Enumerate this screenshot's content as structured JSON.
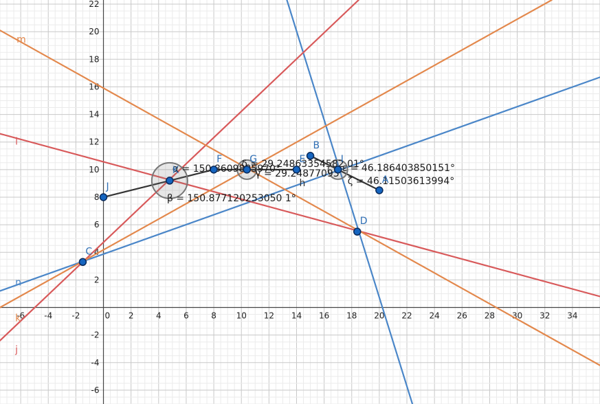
{
  "graph": {
    "x_ticks": [
      "-6",
      "-4",
      "-2",
      "2",
      "4",
      "6",
      "8",
      "10",
      "12",
      "14",
      "16",
      "18",
      "20",
      "22",
      "24",
      "26",
      "28",
      "30",
      "32",
      "34"
    ],
    "y_ticks": [
      "22",
      "20",
      "18",
      "16",
      "14",
      "12",
      "10",
      "8",
      "6",
      "4",
      "2",
      "-2",
      "-4",
      "-6"
    ],
    "origin_label": "0",
    "xlim": [
      -7.5,
      36.0
    ],
    "ylim": [
      -7.0,
      22.3
    ]
  },
  "colors": {
    "blue": "#4a86c8",
    "red": "#d8595a",
    "orange": "#e3884c",
    "dark": "#333333",
    "point_fill": "#1565c0",
    "point_stroke": "#0a2a5a",
    "point_label": "#2f6fb5"
  },
  "lines": [
    {
      "id": "n",
      "label": "n",
      "color": "blue",
      "p1": [
        -7.5,
        1.2
      ],
      "p2": [
        36.0,
        16.7
      ]
    },
    {
      "id": "blue_steep",
      "label": "",
      "color": "blue",
      "p1": [
        13.3,
        22.3
      ],
      "p2": [
        22.4,
        -7.0
      ]
    },
    {
      "id": "j",
      "label": "j",
      "color": "red",
      "p1": [
        -7.5,
        -2.4
      ],
      "p2": [
        18.5,
        22.3
      ]
    },
    {
      "id": "l",
      "label": "l",
      "color": "red",
      "p1": [
        -7.5,
        12.6
      ],
      "p2": [
        36.0,
        0.8
      ]
    },
    {
      "id": "k",
      "label": "k",
      "color": "orange",
      "p1": [
        -7.5,
        0.0
      ],
      "p2": [
        32.5,
        22.3
      ]
    },
    {
      "id": "m",
      "label": "m",
      "color": "orange",
      "p1": [
        -7.5,
        20.1
      ],
      "p2": [
        36.0,
        -4.2
      ]
    }
  ],
  "segments": [
    {
      "from": [
        0.0,
        8.0
      ],
      "to": [
        4.8,
        9.2
      ]
    },
    {
      "from": [
        4.8,
        9.2
      ],
      "to": [
        8.0,
        10.0
      ]
    },
    {
      "from": [
        8.0,
        10.0
      ],
      "to": [
        10.4,
        10.0
      ]
    },
    {
      "from": [
        10.4,
        10.0
      ],
      "to": [
        14.0,
        10.0
      ]
    },
    {
      "from": [
        15.0,
        11.0
      ],
      "to": [
        17.0,
        10.0
      ]
    },
    {
      "from": [
        17.0,
        10.0
      ],
      "to": [
        20.0,
        8.5
      ]
    }
  ],
  "line_labels": [
    {
      "text": "m",
      "color": "orange",
      "at": [
        -6.3,
        19.2
      ]
    },
    {
      "text": "l",
      "color": "red",
      "at": [
        -6.4,
        11.8
      ]
    },
    {
      "text": "n",
      "color": "blue",
      "at": [
        -6.4,
        1.6
      ]
    },
    {
      "text": "k",
      "color": "orange",
      "at": [
        -6.4,
        -1.0
      ]
    },
    {
      "text": "j",
      "color": "red",
      "at": [
        -6.4,
        -3.3
      ]
    },
    {
      "text": "h",
      "color": "dark",
      "at": [
        14.2,
        8.8
      ]
    }
  ],
  "points": [
    {
      "label": "J",
      "x": 0.0,
      "y": 8.0,
      "dx": 4,
      "dy": -11
    },
    {
      "label": "K",
      "x": 4.8,
      "y": 9.2,
      "dx": 4,
      "dy": -11
    },
    {
      "label": "F",
      "x": 8.0,
      "y": 10.0,
      "dx": 4,
      "dy": -11
    },
    {
      "label": "G",
      "x": 10.4,
      "y": 10.0,
      "dx": 4,
      "dy": -11
    },
    {
      "label": "E",
      "x": 14.0,
      "y": 10.0,
      "dx": 4,
      "dy": -11
    },
    {
      "label": "B",
      "x": 15.0,
      "y": 11.0,
      "dx": 4,
      "dy": -11
    },
    {
      "label": "I",
      "x": 17.0,
      "y": 10.0,
      "dx": 4,
      "dy": -11
    },
    {
      "label": "A",
      "x": 20.0,
      "y": 8.5,
      "dx": 4,
      "dy": -11
    },
    {
      "label": "D",
      "x": 18.4,
      "y": 5.5,
      "dx": 4,
      "dy": -11
    },
    {
      "label": "C",
      "x": -1.5,
      "y": 3.3,
      "dx": 4,
      "dy": -11
    }
  ],
  "angle_arcs": [
    {
      "cx": 4.8,
      "cy": 9.2,
      "r": 26,
      "color": "dark"
    },
    {
      "cx": 10.4,
      "cy": 10.0,
      "r": 14,
      "color": "dark"
    },
    {
      "cx": 17.0,
      "cy": 10.0,
      "r": 14,
      "color": "dark"
    }
  ],
  "measurements": [
    {
      "text": "α = 150.8609885970°",
      "at": [
        5.0,
        9.85
      ]
    },
    {
      "text": "β = 150.877120253050 1°",
      "at": [
        4.6,
        7.7
      ]
    },
    {
      "text": "δ = 29.24863354582 01°",
      "at": [
        10.0,
        10.2
      ]
    },
    {
      "text": "γ = 29.24877093",
      "at": [
        11.0,
        9.5
      ]
    },
    {
      "text": "ε = 46.186403850151°",
      "at": [
        17.3,
        9.9
      ]
    },
    {
      "text": "ζ = 46.11503613994°",
      "at": [
        17.7,
        8.95
      ]
    }
  ]
}
